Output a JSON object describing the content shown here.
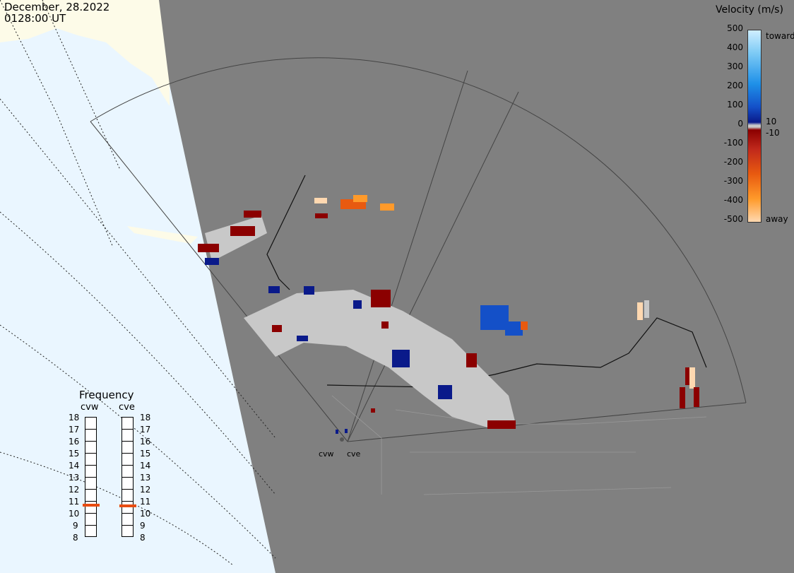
{
  "header": {
    "date": "December, 28.2022",
    "time": "0128:00 UT"
  },
  "velocity_scale": {
    "title": "Velocity (m/s)",
    "ticks": [
      "500",
      "400",
      "300",
      "200",
      "100",
      "0",
      "-100",
      "-200",
      "-300",
      "-400",
      "-500"
    ],
    "upper_side": "toward",
    "lower_side": "away",
    "near_zero_upper": "10",
    "near_zero_lower": "-10",
    "colors": [
      "#cfeeff",
      "#7ccaf5",
      "#1e90e8",
      "#1450c8",
      "#0a1a8a",
      "#c8c8c8",
      "#8b0000",
      "#c0281b",
      "#e85a10",
      "#ff9a2a",
      "#ffd8b0"
    ]
  },
  "frequency": {
    "title": "Frequency",
    "radars": [
      {
        "name": "cvw",
        "level": "10.8"
      },
      {
        "name": "cve",
        "level": "10.6"
      }
    ],
    "levels": [
      "18",
      "17",
      "16",
      "15",
      "14",
      "13",
      "12",
      "11",
      "10",
      "9",
      "8"
    ]
  },
  "radar_sites": [
    "cvw",
    "cve"
  ],
  "colors": {
    "ocean": "#eaf6ff",
    "land_fill": "#808080",
    "ice": "#fdfbe8",
    "scatter_gray": "#c8c8c8"
  }
}
